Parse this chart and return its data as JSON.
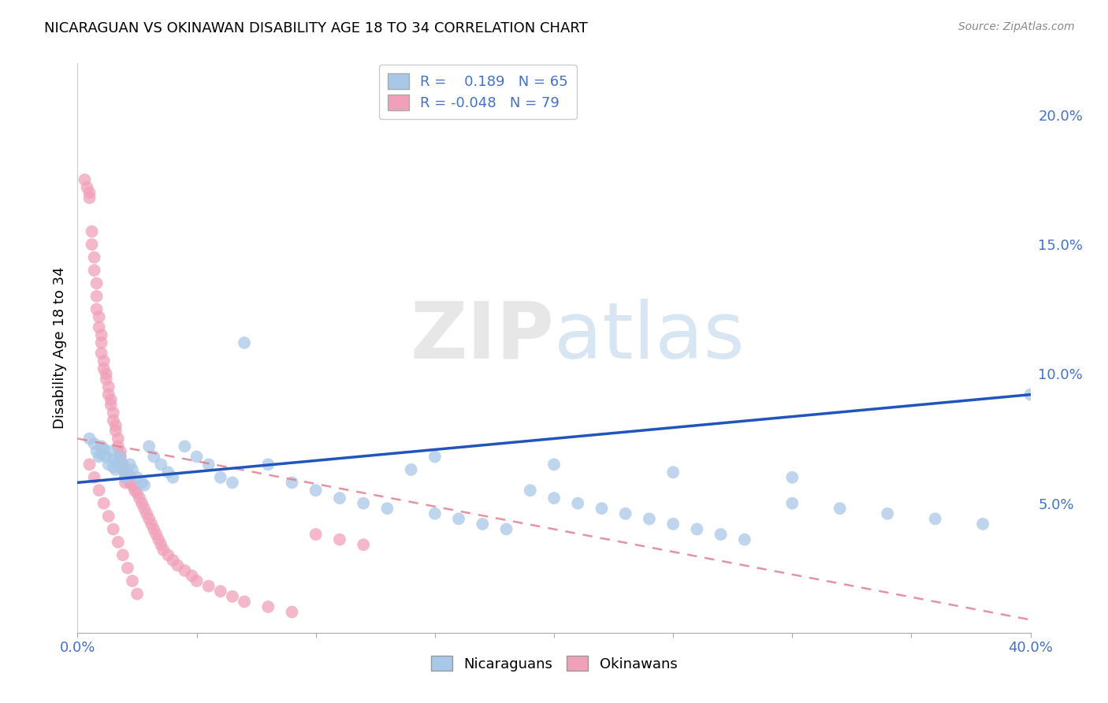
{
  "title": "NICARAGUAN VS OKINAWAN DISABILITY AGE 18 TO 34 CORRELATION CHART",
  "source": "Source: ZipAtlas.com",
  "ylabel": "Disability Age 18 to 34",
  "xlim": [
    0.0,
    0.4
  ],
  "ylim": [
    0.0,
    0.22
  ],
  "xticks": [
    0.0,
    0.05,
    0.1,
    0.15,
    0.2,
    0.25,
    0.3,
    0.35,
    0.4
  ],
  "yticks_right": [
    0.05,
    0.1,
    0.15,
    0.2
  ],
  "yticklabels_right": [
    "5.0%",
    "10.0%",
    "15.0%",
    "20.0%"
  ],
  "blue_R": 0.189,
  "blue_N": 65,
  "pink_R": -0.048,
  "pink_N": 79,
  "blue_color": "#a8c8e8",
  "pink_color": "#f0a0b8",
  "blue_line_color": "#2255bb",
  "pink_line_color": "#e08090",
  "watermark_zip": "ZIP",
  "watermark_atlas": "atlas",
  "legend_label_blue": "Nicaraguans",
  "legend_label_pink": "Okinawans",
  "blue_scatter_x": [
    0.005,
    0.007,
    0.008,
    0.009,
    0.01,
    0.01,
    0.011,
    0.012,
    0.013,
    0.014,
    0.015,
    0.015,
    0.016,
    0.017,
    0.018,
    0.019,
    0.02,
    0.02,
    0.022,
    0.023,
    0.025,
    0.027,
    0.028,
    0.03,
    0.032,
    0.035,
    0.038,
    0.04,
    0.045,
    0.05,
    0.055,
    0.06,
    0.065,
    0.07,
    0.08,
    0.09,
    0.1,
    0.11,
    0.12,
    0.13,
    0.14,
    0.15,
    0.16,
    0.17,
    0.18,
    0.19,
    0.2,
    0.21,
    0.22,
    0.23,
    0.24,
    0.25,
    0.26,
    0.27,
    0.28,
    0.3,
    0.32,
    0.34,
    0.36,
    0.38,
    0.4,
    0.15,
    0.2,
    0.25,
    0.3
  ],
  "blue_scatter_y": [
    0.075,
    0.073,
    0.07,
    0.068,
    0.072,
    0.069,
    0.071,
    0.068,
    0.065,
    0.07,
    0.067,
    0.064,
    0.063,
    0.066,
    0.068,
    0.065,
    0.062,
    0.06,
    0.065,
    0.063,
    0.06,
    0.058,
    0.057,
    0.072,
    0.068,
    0.065,
    0.062,
    0.06,
    0.072,
    0.068,
    0.065,
    0.06,
    0.058,
    0.112,
    0.065,
    0.058,
    0.055,
    0.052,
    0.05,
    0.048,
    0.063,
    0.046,
    0.044,
    0.042,
    0.04,
    0.055,
    0.052,
    0.05,
    0.048,
    0.046,
    0.044,
    0.042,
    0.04,
    0.038,
    0.036,
    0.05,
    0.048,
    0.046,
    0.044,
    0.042,
    0.092,
    0.068,
    0.065,
    0.062,
    0.06
  ],
  "pink_scatter_x": [
    0.003,
    0.004,
    0.005,
    0.005,
    0.006,
    0.006,
    0.007,
    0.007,
    0.008,
    0.008,
    0.008,
    0.009,
    0.009,
    0.01,
    0.01,
    0.01,
    0.011,
    0.011,
    0.012,
    0.012,
    0.013,
    0.013,
    0.014,
    0.014,
    0.015,
    0.015,
    0.016,
    0.016,
    0.017,
    0.017,
    0.018,
    0.018,
    0.019,
    0.019,
    0.02,
    0.02,
    0.021,
    0.022,
    0.022,
    0.023,
    0.024,
    0.025,
    0.026,
    0.027,
    0.028,
    0.029,
    0.03,
    0.031,
    0.032,
    0.033,
    0.034,
    0.035,
    0.036,
    0.038,
    0.04,
    0.042,
    0.045,
    0.048,
    0.05,
    0.055,
    0.06,
    0.065,
    0.07,
    0.08,
    0.09,
    0.1,
    0.11,
    0.12,
    0.005,
    0.007,
    0.009,
    0.011,
    0.013,
    0.015,
    0.017,
    0.019,
    0.021,
    0.023,
    0.025
  ],
  "pink_scatter_y": [
    0.175,
    0.172,
    0.17,
    0.168,
    0.155,
    0.15,
    0.145,
    0.14,
    0.135,
    0.13,
    0.125,
    0.122,
    0.118,
    0.115,
    0.112,
    0.108,
    0.105,
    0.102,
    0.1,
    0.098,
    0.095,
    0.092,
    0.09,
    0.088,
    0.085,
    0.082,
    0.08,
    0.078,
    0.075,
    0.072,
    0.07,
    0.068,
    0.065,
    0.063,
    0.06,
    0.058,
    0.062,
    0.06,
    0.058,
    0.057,
    0.055,
    0.054,
    0.052,
    0.05,
    0.048,
    0.046,
    0.044,
    0.042,
    0.04,
    0.038,
    0.036,
    0.034,
    0.032,
    0.03,
    0.028,
    0.026,
    0.024,
    0.022,
    0.02,
    0.018,
    0.016,
    0.014,
    0.012,
    0.01,
    0.008,
    0.038,
    0.036,
    0.034,
    0.065,
    0.06,
    0.055,
    0.05,
    0.045,
    0.04,
    0.035,
    0.03,
    0.025,
    0.02,
    0.015
  ],
  "blue_trend_x0": 0.0,
  "blue_trend_x1": 0.4,
  "blue_trend_y0": 0.058,
  "blue_trend_y1": 0.092,
  "pink_trend_x0": 0.0,
  "pink_trend_x1": 0.4,
  "pink_trend_y0": 0.075,
  "pink_trend_y1": 0.005
}
